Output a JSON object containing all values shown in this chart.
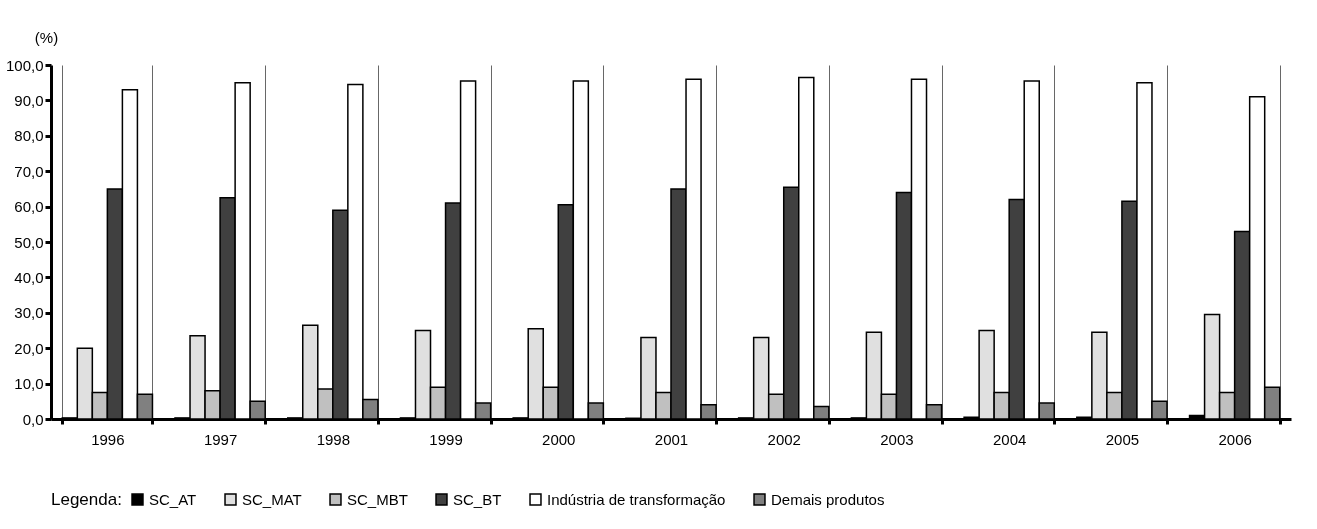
{
  "chart_data": {
    "type": "bar",
    "ylabel": "(%)",
    "legend_title": "Legenda:",
    "legend": "bottom",
    "grid": "x",
    "categories": [
      "1996",
      "1997",
      "1998",
      "1999",
      "2000",
      "2001",
      "2002",
      "2003",
      "2004",
      "2005",
      "2006"
    ],
    "ylim": [
      0,
      100
    ],
    "yticks": [
      {
        "value": 0,
        "label": "0,0"
      },
      {
        "value": 10,
        "label": "10,0"
      },
      {
        "value": 20,
        "label": "20,0"
      },
      {
        "value": 30,
        "label": "30,0"
      },
      {
        "value": 40,
        "label": "40,0"
      },
      {
        "value": 50,
        "label": "50,0"
      },
      {
        "value": 60,
        "label": "60,0"
      },
      {
        "value": 70,
        "label": "70,0"
      },
      {
        "value": 80,
        "label": "80,0"
      },
      {
        "value": 90,
        "label": "90,0"
      },
      {
        "value": 100,
        "label": "100,0"
      }
    ],
    "series": [
      {
        "name": "SC_AT",
        "color": "#000000",
        "values": [
          0.3,
          0.3,
          0.3,
          0.3,
          0.3,
          0.2,
          0.3,
          0.3,
          0.5,
          0.5,
          1.0
        ]
      },
      {
        "name": "SC_MAT",
        "color": "#e0e0e0",
        "values": [
          20,
          23.5,
          26.5,
          25,
          25.5,
          23,
          23,
          24.5,
          25,
          24.5,
          29.5
        ]
      },
      {
        "name": "SC_MBT",
        "color": "#c0c0c0",
        "values": [
          7.5,
          8,
          8.5,
          9,
          9,
          7.5,
          7,
          7,
          7.5,
          7.5,
          7.5
        ]
      },
      {
        "name": "SC_BT",
        "color": "#404040",
        "values": [
          65,
          62.5,
          59,
          61,
          60.5,
          65,
          65.5,
          64,
          62,
          61.5,
          53
        ]
      },
      {
        "name": "Indústria de transformação",
        "color": "#ffffff",
        "values": [
          93,
          95,
          94.5,
          95.5,
          95.5,
          96,
          96.5,
          96,
          95.5,
          95,
          91
        ]
      },
      {
        "name": "Demais produtos",
        "color": "#808080",
        "values": [
          7,
          5,
          5.5,
          4.5,
          4.5,
          4,
          3.5,
          4,
          4.5,
          5,
          9
        ]
      }
    ]
  }
}
